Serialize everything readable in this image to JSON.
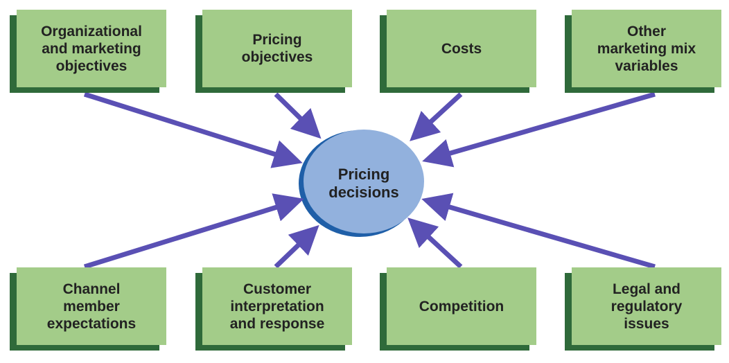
{
  "diagram": {
    "center": {
      "label": "Pricing\ndecisions"
    },
    "factors": [
      {
        "id": "org",
        "label": "Organizational\nand marketing\nobjectives"
      },
      {
        "id": "obj",
        "label": "Pricing\nobjectives"
      },
      {
        "id": "costs",
        "label": "Costs"
      },
      {
        "id": "mix",
        "label": "Other\nmarketing mix\nvariables"
      },
      {
        "id": "channel",
        "label": "Channel\nmember\nexpectations"
      },
      {
        "id": "customer",
        "label": "Customer\ninterpretation\nand response"
      },
      {
        "id": "comp",
        "label": "Competition"
      },
      {
        "id": "legal",
        "label": "Legal and\nregulatory\nissues"
      }
    ],
    "colors": {
      "box_fill": "#a3cc89",
      "box_shadow": "#2f6a3a",
      "arrow": "#5a50b4",
      "circle_fill": "#92b1dd",
      "circle_shadow": "#1f5fa8"
    }
  }
}
